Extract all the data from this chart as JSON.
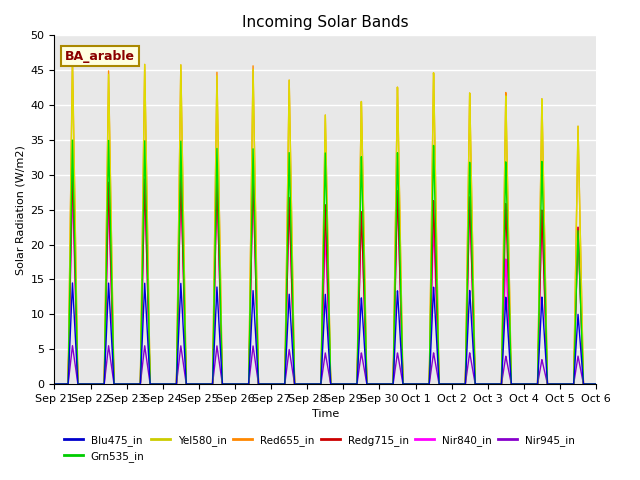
{
  "title": "Incoming Solar Bands",
  "xlabel": "Time",
  "ylabel": "Solar Radiation (W/m2)",
  "annotation": "BA_arable",
  "ylim": [
    0,
    50
  ],
  "background_color": "#e8e8e8",
  "x_tick_labels": [
    "Sep 21",
    "Sep 22",
    "Sep 23",
    "Sep 24",
    "Sep 25",
    "Sep 26",
    "Sep 27",
    "Sep 28",
    "Sep 29",
    "Sep 30",
    "Oct 1",
    "Oct 2",
    "Oct 3",
    "Oct 4",
    "Oct 5",
    "Oct 6"
  ],
  "n_days": 15,
  "blu_peaks": [
    14.5,
    14.5,
    14.5,
    14.5,
    14.0,
    13.5,
    13.0,
    13.0,
    12.5,
    13.5,
    14.0,
    13.5,
    12.5,
    12.5,
    10.0
  ],
  "grn_peaks": [
    35.0,
    35.0,
    35.0,
    35.0,
    34.0,
    34.0,
    33.5,
    33.5,
    33.0,
    33.5,
    34.5,
    32.0,
    32.0,
    32.0,
    22.0
  ],
  "yel_peaks": [
    46.0,
    44.5,
    46.0,
    46.0,
    44.5,
    45.5,
    44.0,
    39.0,
    41.0,
    43.0,
    45.0,
    42.0,
    41.5,
    41.0,
    37.0
  ],
  "red_peaks": [
    47.0,
    45.0,
    46.0,
    46.0,
    45.0,
    46.0,
    44.0,
    39.0,
    41.0,
    43.0,
    45.0,
    42.0,
    42.0,
    41.0,
    37.0
  ],
  "redg_peaks": [
    31.0,
    29.0,
    29.5,
    30.0,
    29.5,
    30.0,
    27.0,
    26.0,
    25.0,
    28.0,
    26.5,
    27.0,
    26.0,
    25.0,
    22.5
  ],
  "nirm_peaks": [
    28.0,
    27.0,
    29.5,
    30.0,
    29.5,
    30.0,
    27.0,
    22.0,
    25.0,
    28.0,
    23.0,
    27.0,
    18.0,
    25.0,
    22.5
  ],
  "nirn_peaks": [
    5.5,
    5.5,
    5.5,
    5.5,
    5.5,
    5.5,
    5.0,
    4.5,
    4.5,
    4.5,
    4.5,
    4.5,
    4.0,
    3.5,
    4.0
  ],
  "colors": {
    "Blu475_in": "#0000dd",
    "Grn535_in": "#00dd00",
    "Yel580_in": "#dddd00",
    "Red655_in": "#ff8800",
    "Redg715_in": "#cc0000",
    "Nir840_in": "#ff00ff",
    "Nir945_in": "#8800cc"
  },
  "legend_colors": {
    "Blu475_in": "#0000cc",
    "Grn535_in": "#00cc00",
    "Yel580_in": "#cccc00",
    "Red655_in": "#ff8800",
    "Redg715_in": "#cc0000",
    "Nir840_in": "#ff00ff",
    "Nir945_in": "#8800cc"
  }
}
